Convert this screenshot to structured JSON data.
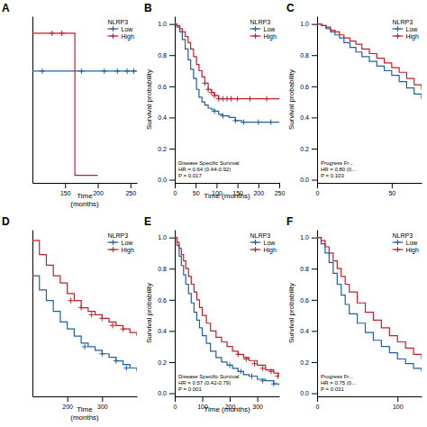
{
  "chart_data": [
    {
      "type": "step",
      "title": "A",
      "xlabel": "Time\n(months)",
      "xlim": [
        100,
        260
      ],
      "ylim": [
        -0.02,
        0.42
      ],
      "xticks": [
        150,
        200,
        250
      ],
      "tick_labels": "x",
      "legend": "upper right",
      "legend_title": "NLRP3",
      "series": [
        {
          "name": "Low",
          "color": "#2060a0",
          "x": [
            100,
            165,
            165,
            260
          ],
          "values": [
            0.275,
            0.275,
            0.275,
            0.275
          ],
          "censor_x": [
            115,
            175,
            210,
            230,
            245,
            255
          ],
          "censor_values": [
            0.275,
            0.275,
            0.275,
            0.275,
            0.275,
            0.275
          ]
        },
        {
          "name": "High",
          "color": "#c0202a",
          "x": [
            100,
            165,
            165,
            200
          ],
          "values": [
            0.375,
            0.375,
            0.0,
            0.0
          ],
          "censor_x": [
            130,
            145
          ],
          "censor_values": [
            0.375,
            0.375
          ]
        }
      ]
    },
    {
      "type": "step",
      "title": "B",
      "xlabel": "Time (months)",
      "ylabel": "Survival probability",
      "xlim": [
        0,
        250
      ],
      "ylim": [
        -0.02,
        1.05
      ],
      "xticks": [
        0,
        50,
        100,
        150,
        200,
        250
      ],
      "yticks": [
        {
          "value": 0.0,
          "label": "0.0"
        },
        0.2,
        0.4,
        0.6,
        0.8,
        {
          "value": 1.0,
          "label": "1.0"
        }
      ],
      "legend": "upper right",
      "legend_title": "NLRP3",
      "annotation": "Disease Specific Survival\nHR = 0.64 (0.44-0.92)\nP = 0.017",
      "series": [
        {
          "name": "Low",
          "color": "#2060a0",
          "x": [
            0,
            5,
            12,
            18,
            25,
            32,
            38,
            45,
            52,
            58,
            65,
            72,
            80,
            88,
            95,
            105,
            115,
            130,
            145,
            160,
            200,
            250
          ],
          "values": [
            1.0,
            0.98,
            0.95,
            0.9,
            0.84,
            0.77,
            0.71,
            0.65,
            0.58,
            0.53,
            0.5,
            0.48,
            0.46,
            0.45,
            0.44,
            0.42,
            0.41,
            0.4,
            0.38,
            0.37,
            0.37,
            0.37
          ],
          "censor_x": [
            95,
            115,
            145,
            165,
            200,
            230
          ],
          "censor_values": [
            0.44,
            0.41,
            0.38,
            0.37,
            0.37,
            0.37
          ]
        },
        {
          "name": "High",
          "color": "#c0202a",
          "x": [
            0,
            5,
            12,
            18,
            25,
            32,
            38,
            45,
            52,
            58,
            65,
            72,
            80,
            88,
            95,
            105,
            130,
            160,
            200,
            250
          ],
          "values": [
            1.0,
            0.99,
            0.97,
            0.95,
            0.92,
            0.88,
            0.84,
            0.79,
            0.74,
            0.7,
            0.66,
            0.62,
            0.58,
            0.56,
            0.54,
            0.52,
            0.52,
            0.52,
            0.52,
            0.52
          ],
          "censor_x": [
            72,
            80,
            88,
            95,
            105,
            115,
            125,
            135,
            150,
            180,
            220
          ],
          "censor_values": [
            0.62,
            0.58,
            0.56,
            0.54,
            0.52,
            0.52,
            0.52,
            0.52,
            0.52,
            0.52,
            0.52
          ]
        }
      ]
    },
    {
      "type": "step",
      "title": "C",
      "ylabel": "Survival probability",
      "xlim": [
        0,
        70
      ],
      "ylim": [
        -0.02,
        1.05
      ],
      "xticks": [
        0,
        50
      ],
      "yticks": [
        {
          "value": 0.0,
          "label": "0.0"
        },
        0.2,
        0.4,
        0.6,
        0.8,
        {
          "value": 1.0,
          "label": "1.0"
        }
      ],
      "legend": "upper right",
      "legend_title": "NLRP3",
      "annotation": "Progress Fr...\nHR = 0.80 (0...\nP = 0.103",
      "series": [
        {
          "name": "Low",
          "color": "#2060a0",
          "x": [
            0,
            3,
            6,
            9,
            12,
            15,
            18,
            22,
            26,
            30,
            35,
            40,
            45,
            50,
            55,
            60,
            65,
            70
          ],
          "values": [
            1.0,
            0.99,
            0.97,
            0.95,
            0.93,
            0.91,
            0.88,
            0.85,
            0.82,
            0.79,
            0.76,
            0.73,
            0.7,
            0.67,
            0.63,
            0.59,
            0.55,
            0.52
          ]
        },
        {
          "name": "High",
          "color": "#c0202a",
          "x": [
            0,
            3,
            6,
            9,
            12,
            15,
            18,
            22,
            26,
            30,
            35,
            40,
            45,
            50,
            55,
            60,
            65,
            70
          ],
          "values": [
            1.0,
            0.99,
            0.98,
            0.96,
            0.95,
            0.93,
            0.91,
            0.89,
            0.87,
            0.84,
            0.81,
            0.78,
            0.75,
            0.72,
            0.69,
            0.65,
            0.61,
            0.58
          ]
        }
      ]
    },
    {
      "type": "step",
      "title": "D",
      "xlabel": "Time\n(months)",
      "xlim": [
        100,
        400
      ],
      "ylim": [
        -0.02,
        0.45
      ],
      "xticks": [
        200,
        300
      ],
      "tick_labels": "x",
      "legend": "upper right",
      "legend_title": "NLRP3",
      "series": [
        {
          "name": "Low",
          "color": "#2060a0",
          "x": [
            100,
            120,
            140,
            160,
            180,
            200,
            220,
            240,
            260,
            280,
            300,
            320,
            340,
            360,
            380,
            400
          ],
          "values": [
            0.32,
            0.28,
            0.25,
            0.22,
            0.19,
            0.17,
            0.15,
            0.13,
            0.12,
            0.11,
            0.1,
            0.09,
            0.08,
            0.07,
            0.06,
            0.05
          ],
          "censor_x": [
            250,
            300,
            340,
            370
          ],
          "censor_values": [
            0.12,
            0.1,
            0.08,
            0.06
          ]
        },
        {
          "name": "High",
          "color": "#c0202a",
          "x": [
            100,
            120,
            140,
            160,
            180,
            200,
            220,
            240,
            260,
            280,
            300,
            320,
            340,
            360,
            380,
            400
          ],
          "values": [
            0.42,
            0.38,
            0.35,
            0.32,
            0.3,
            0.27,
            0.25,
            0.23,
            0.22,
            0.21,
            0.2,
            0.19,
            0.18,
            0.17,
            0.16,
            0.15
          ],
          "censor_x": [
            210,
            240,
            270,
            300,
            330,
            360
          ],
          "censor_values": [
            0.25,
            0.23,
            0.21,
            0.2,
            0.18,
            0.17
          ]
        }
      ]
    },
    {
      "type": "step",
      "title": "E",
      "xlabel": "Time (months)",
      "ylabel": "Survival probability",
      "xlim": [
        0,
        380
      ],
      "ylim": [
        -0.02,
        1.05
      ],
      "xticks": [
        0,
        100,
        200,
        300
      ],
      "yticks": [
        {
          "value": 0.0,
          "label": "0.0"
        },
        0.2,
        0.4,
        0.6,
        0.8,
        {
          "value": 1.0,
          "label": "1.0"
        }
      ],
      "legend": "upper right",
      "legend_title": "NLRP3",
      "annotation": "Disease Specific Survival\nHR = 0.57 (0.42-0.79)\nP = 0.001",
      "series": [
        {
          "name": "Low",
          "color": "#2060a0",
          "x": [
            0,
            8,
            16,
            24,
            32,
            40,
            50,
            60,
            70,
            80,
            90,
            100,
            115,
            130,
            150,
            170,
            190,
            210,
            230,
            250,
            270,
            300,
            330,
            360,
            380
          ],
          "values": [
            1.0,
            0.95,
            0.88,
            0.82,
            0.76,
            0.7,
            0.64,
            0.58,
            0.52,
            0.47,
            0.42,
            0.37,
            0.32,
            0.27,
            0.23,
            0.2,
            0.18,
            0.16,
            0.14,
            0.12,
            0.11,
            0.09,
            0.08,
            0.06,
            0.05
          ],
          "censor_x": [
            200,
            240,
            280,
            320,
            360
          ],
          "censor_values": [
            0.18,
            0.14,
            0.11,
            0.08,
            0.06
          ]
        },
        {
          "name": "High",
          "color": "#c0202a",
          "x": [
            0,
            8,
            16,
            24,
            32,
            40,
            50,
            60,
            70,
            80,
            90,
            100,
            115,
            130,
            150,
            170,
            190,
            210,
            230,
            250,
            270,
            300,
            330,
            360,
            380
          ],
          "values": [
            1.0,
            0.97,
            0.93,
            0.89,
            0.85,
            0.8,
            0.75,
            0.7,
            0.65,
            0.6,
            0.55,
            0.5,
            0.45,
            0.4,
            0.36,
            0.33,
            0.3,
            0.27,
            0.25,
            0.23,
            0.21,
            0.18,
            0.15,
            0.13,
            0.11
          ],
          "censor_x": [
            230,
            260,
            290,
            320,
            350,
            375
          ],
          "censor_values": [
            0.25,
            0.22,
            0.19,
            0.16,
            0.14,
            0.11
          ]
        }
      ]
    },
    {
      "type": "step",
      "title": "F",
      "ylabel": "Survival probability",
      "xlim": [
        0,
        130
      ],
      "ylim": [
        -0.02,
        1.05
      ],
      "xticks": [
        0,
        100
      ],
      "yticks": [
        {
          "value": 0.0,
          "label": "0.0"
        },
        0.2,
        0.4,
        0.6,
        0.8,
        {
          "value": 1.0,
          "label": "1.0"
        }
      ],
      "legend": "upper right",
      "legend_title": "NLRP3",
      "annotation": "Progress Fr...\nHR = 0.75 (0...\nP = 0.031",
      "series": [
        {
          "name": "Low",
          "color": "#2060a0",
          "x": [
            0,
            5,
            10,
            15,
            20,
            25,
            30,
            35,
            40,
            50,
            60,
            70,
            80,
            90,
            100,
            110,
            120,
            130
          ],
          "values": [
            1.0,
            0.96,
            0.9,
            0.84,
            0.77,
            0.7,
            0.63,
            0.57,
            0.51,
            0.45,
            0.39,
            0.34,
            0.3,
            0.26,
            0.22,
            0.19,
            0.16,
            0.14
          ]
        },
        {
          "name": "High",
          "color": "#c0202a",
          "x": [
            0,
            5,
            10,
            15,
            20,
            25,
            30,
            35,
            40,
            50,
            60,
            70,
            80,
            90,
            100,
            110,
            120,
            130
          ],
          "values": [
            1.0,
            0.98,
            0.94,
            0.9,
            0.85,
            0.8,
            0.75,
            0.7,
            0.65,
            0.58,
            0.52,
            0.47,
            0.42,
            0.37,
            0.33,
            0.29,
            0.25,
            0.22
          ]
        }
      ]
    }
  ]
}
